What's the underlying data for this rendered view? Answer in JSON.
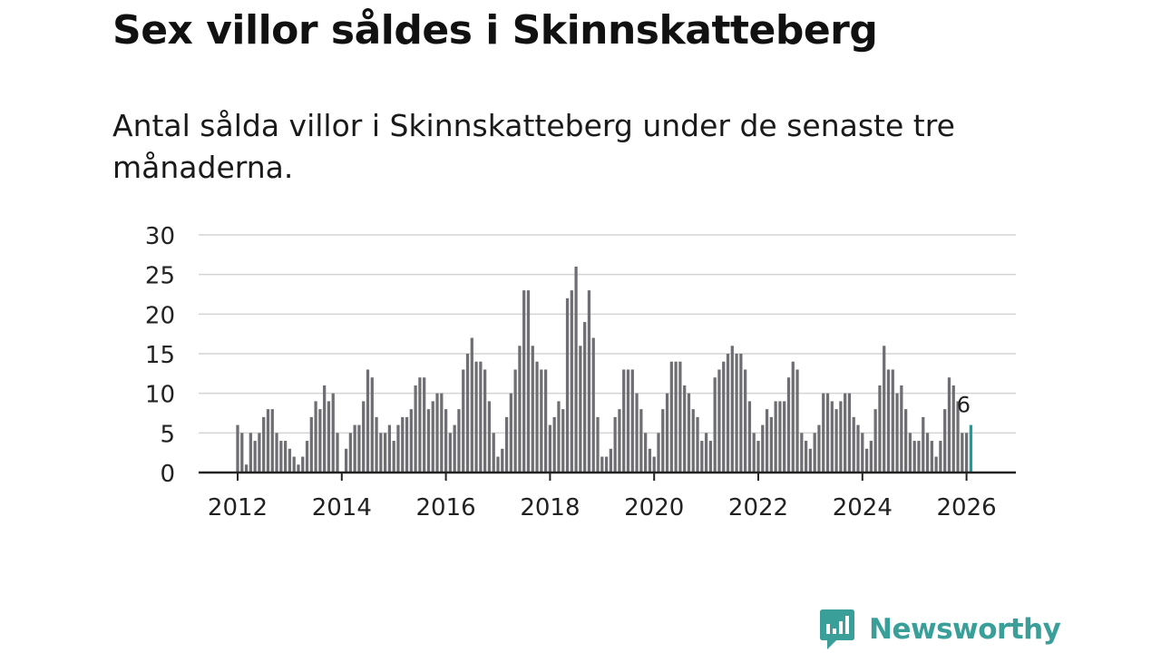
{
  "header": {
    "title": "Sex villor såldes i Skinnskatteberg",
    "subtitle": "Antal sålda villor i Skinnskatteberg under de senaste tre månaderna."
  },
  "brand": {
    "name": "Newsworthy"
  },
  "colors": {
    "bar": "#6e6e73",
    "highlight": "#1a9e9a",
    "grid": "#d4d4d4",
    "axis": "#222222",
    "brand": "#3a9f99"
  },
  "chart_data": {
    "type": "bar",
    "title": "Sex villor såldes i Skinnskatteberg",
    "xlabel": "",
    "ylabel": "",
    "ylim": [
      0,
      30
    ],
    "xlim": [
      2012,
      2026.5
    ],
    "yticks": [
      0,
      5,
      10,
      15,
      20,
      25,
      30
    ],
    "xticks": [
      2012,
      2014,
      2016,
      2018,
      2020,
      2022,
      2024,
      2026
    ],
    "x_start": 2012.0,
    "step": 0.0833333,
    "highlight_label": "6",
    "values": [
      6,
      5,
      1,
      5,
      4,
      5,
      7,
      8,
      8,
      5,
      4,
      4,
      3,
      2,
      1,
      2,
      4,
      7,
      9,
      8,
      11,
      9,
      10,
      5,
      0,
      3,
      5,
      6,
      6,
      9,
      13,
      12,
      7,
      5,
      5,
      6,
      4,
      6,
      7,
      7,
      8,
      11,
      12,
      12,
      8,
      9,
      10,
      10,
      8,
      5,
      6,
      8,
      13,
      15,
      17,
      14,
      14,
      13,
      9,
      5,
      2,
      3,
      7,
      10,
      13,
      16,
      23,
      23,
      16,
      14,
      13,
      13,
      6,
      7,
      9,
      8,
      22,
      23,
      26,
      16,
      19,
      23,
      17,
      7,
      2,
      2,
      3,
      7,
      8,
      13,
      13,
      13,
      10,
      8,
      5,
      3,
      2,
      5,
      8,
      10,
      14,
      14,
      14,
      11,
      10,
      8,
      7,
      4,
      5,
      4,
      12,
      13,
      14,
      15,
      16,
      15,
      15,
      13,
      9,
      5,
      4,
      6,
      8,
      7,
      9,
      9,
      9,
      12,
      14,
      13,
      5,
      4,
      3,
      5,
      6,
      10,
      10,
      9,
      8,
      9,
      10,
      10,
      7,
      6,
      5,
      3,
      4,
      8,
      11,
      16,
      13,
      13,
      10,
      11,
      8,
      5,
      4,
      4,
      7,
      5,
      4,
      2,
      4,
      8,
      12,
      11,
      9,
      5,
      5,
      6
    ]
  }
}
